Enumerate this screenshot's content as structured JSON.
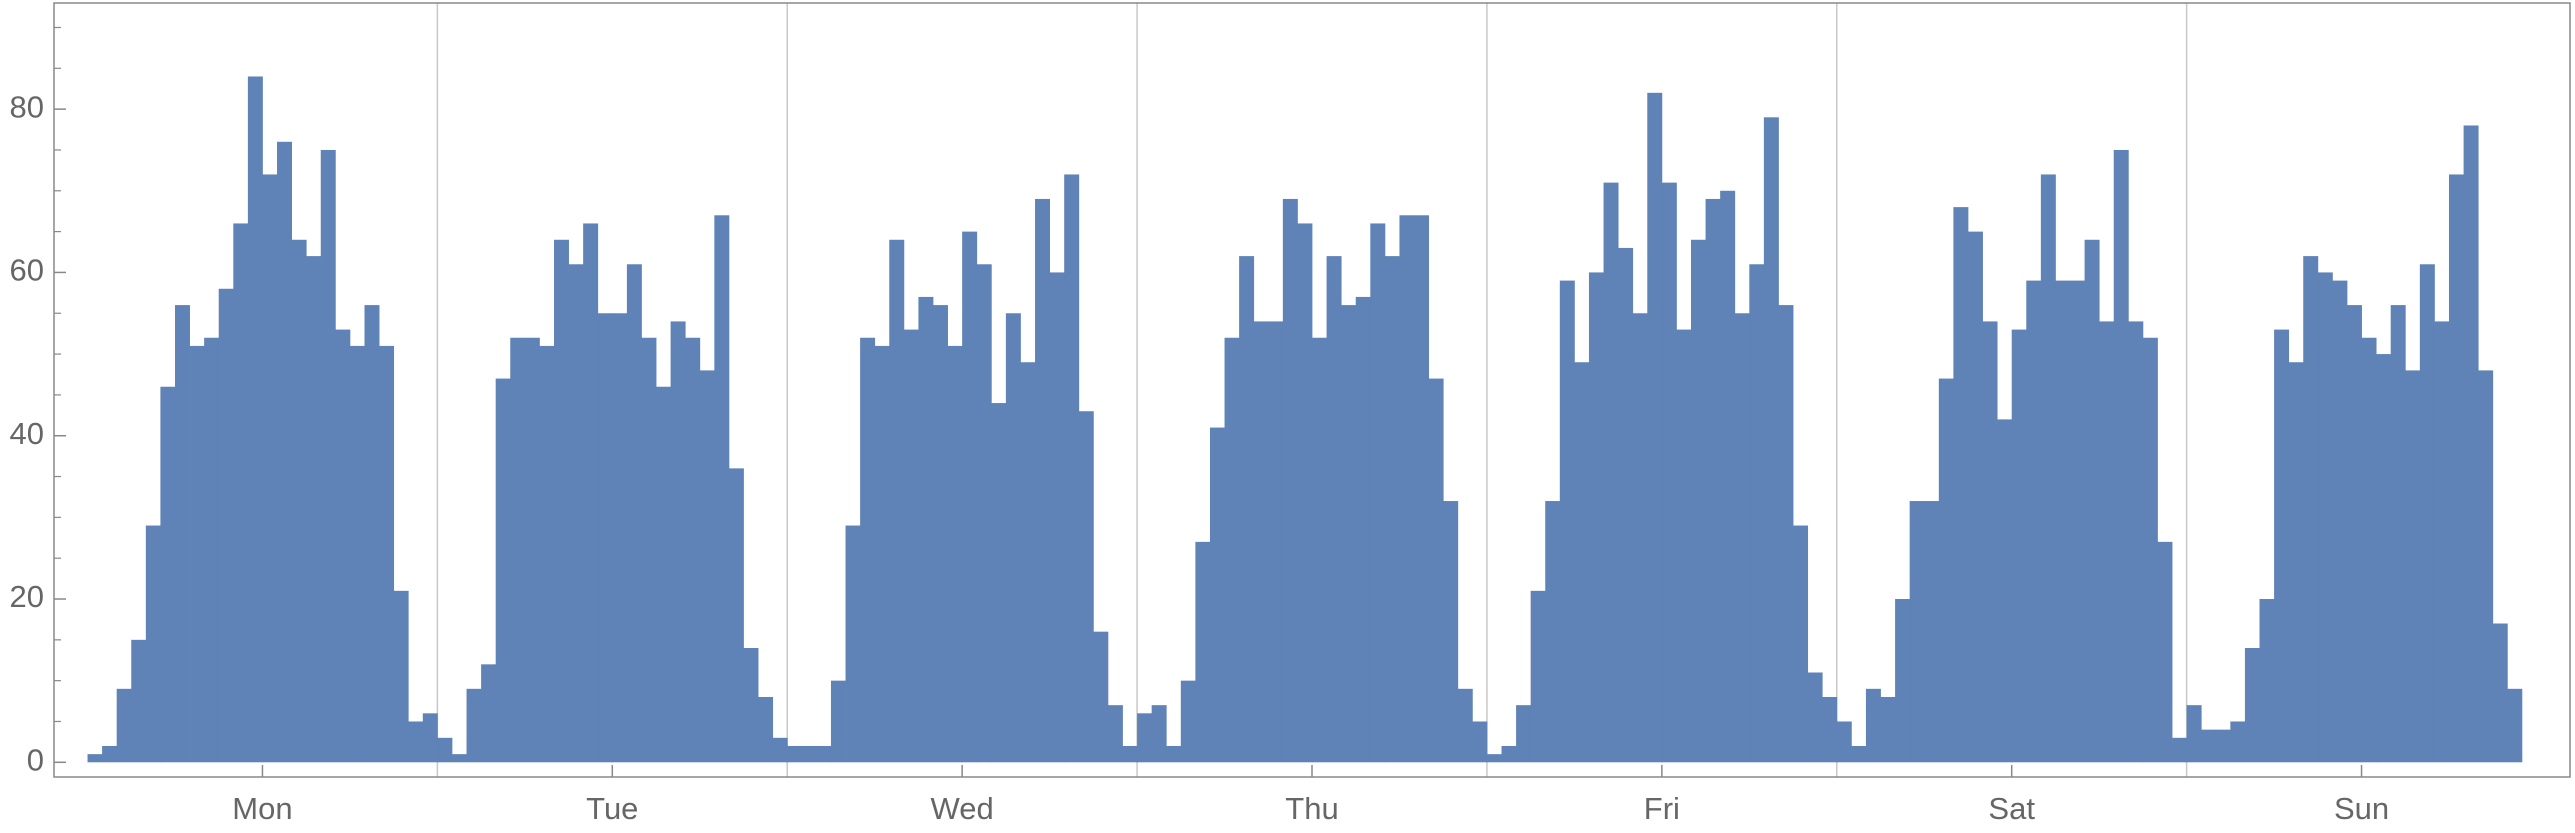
{
  "chart_data": {
    "type": "histogram",
    "color": "#5f83b7",
    "bins": [
      0,
      1,
      2,
      3,
      4,
      5,
      6,
      7,
      8,
      9,
      10,
      11,
      12,
      13,
      14,
      15,
      16,
      17,
      18,
      19,
      20,
      21,
      22,
      23,
      24,
      25,
      26,
      27,
      28,
      29,
      30,
      31,
      32,
      33,
      34,
      35,
      36,
      37,
      38,
      39,
      40,
      41,
      42,
      43,
      44,
      45,
      46,
      47,
      48,
      49,
      50,
      51,
      52,
      53,
      54,
      55,
      56,
      57,
      58,
      59,
      60,
      61,
      62,
      63,
      64,
      65,
      66,
      67,
      68,
      69,
      70,
      71,
      72,
      73,
      74,
      75,
      76,
      77,
      78,
      79,
      80,
      81,
      82,
      83,
      84,
      85,
      86,
      87,
      88,
      89,
      90,
      91,
      92,
      93,
      94,
      95,
      96,
      97,
      98,
      99,
      100,
      101,
      102,
      103,
      104,
      105,
      106,
      107,
      108,
      109,
      110,
      111,
      112,
      113,
      114,
      115,
      116,
      117,
      118,
      119,
      120,
      121,
      122,
      123,
      124,
      125,
      126,
      127,
      128,
      129,
      130,
      131,
      132,
      133,
      134,
      135,
      136,
      137,
      138,
      139,
      140,
      141,
      142,
      143,
      144,
      145,
      146,
      147,
      148,
      149,
      150,
      151,
      152,
      153,
      154,
      155,
      156,
      157,
      158,
      159,
      160,
      161,
      162,
      163,
      164,
      165,
      166,
      167
    ],
    "counts": [
      1,
      2,
      9,
      15,
      29,
      46,
      56,
      51,
      52,
      58,
      66,
      84,
      72,
      76,
      64,
      62,
      75,
      53,
      51,
      56,
      51,
      21,
      5,
      6,
      3,
      1,
      9,
      12,
      47,
      52,
      52,
      51,
      64,
      61,
      66,
      55,
      55,
      61,
      52,
      46,
      54,
      52,
      48,
      67,
      36,
      14,
      8,
      3,
      2,
      2,
      2,
      10,
      29,
      52,
      51,
      64,
      53,
      57,
      56,
      51,
      65,
      61,
      44,
      55,
      49,
      69,
      60,
      72,
      43,
      16,
      7,
      2,
      6,
      7,
      2,
      10,
      27,
      41,
      52,
      62,
      54,
      54,
      69,
      66,
      52,
      62,
      56,
      57,
      66,
      62,
      67,
      67,
      47,
      32,
      9,
      5,
      1,
      2,
      7,
      21,
      32,
      59,
      49,
      60,
      71,
      63,
      55,
      82,
      71,
      53,
      64,
      69,
      70,
      55,
      61,
      79,
      56,
      29,
      11,
      8,
      5,
      2,
      9,
      8,
      20,
      32,
      32,
      47,
      68,
      65,
      54,
      42,
      53,
      59,
      72,
      59,
      59,
      64,
      54,
      75,
      54,
      52,
      27,
      3,
      7,
      4,
      4,
      5,
      14,
      20,
      53,
      49,
      62,
      60,
      59,
      56,
      52,
      50,
      56,
      48,
      61,
      54,
      72,
      78,
      48,
      17,
      9
    ],
    "xlim": [
      -2.3,
      170.3
    ],
    "xticks": [
      {
        "value": 12,
        "label": "Mon"
      },
      {
        "value": 36,
        "label": "Tue"
      },
      {
        "value": 60,
        "label": "Wed"
      },
      {
        "value": 84,
        "label": "Thu"
      },
      {
        "value": 108,
        "label": "Fri"
      },
      {
        "value": 132,
        "label": "Sat"
      },
      {
        "value": 156,
        "label": "Sun"
      }
    ],
    "xgrid": [
      24,
      48,
      72,
      96,
      120,
      144
    ],
    "ylim": [
      -1.8,
      93
    ],
    "yticks": [
      0,
      20,
      40,
      60,
      80
    ],
    "yticks_minor": [
      5,
      10,
      15,
      25,
      30,
      35,
      45,
      50,
      55,
      65,
      70,
      75,
      85,
      90
    ]
  }
}
